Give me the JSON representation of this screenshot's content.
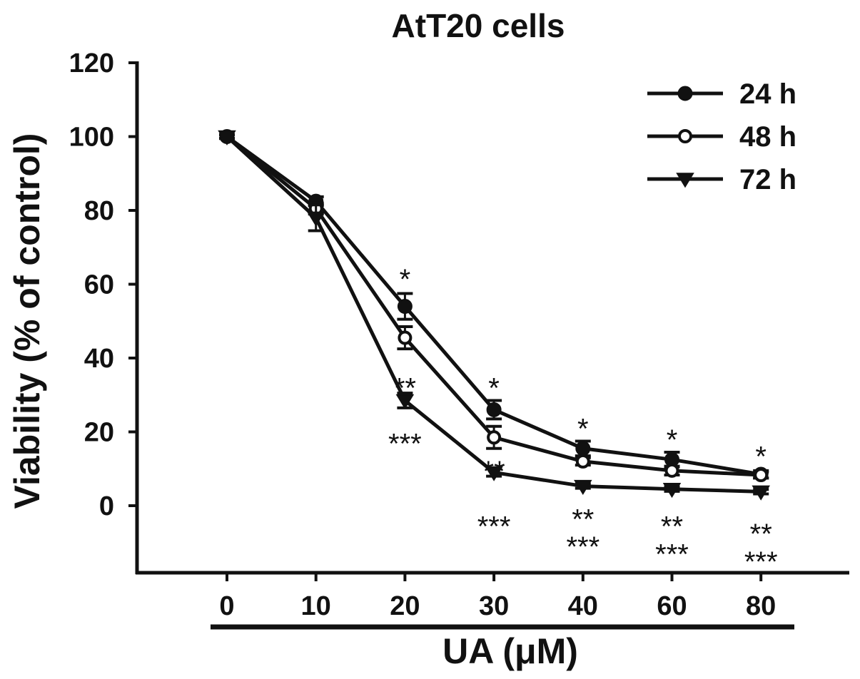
{
  "chart_data": {
    "type": "line",
    "title": "AtT20 cells",
    "xlabel": "UA (μM)",
    "ylabel": "Viability (% of control)",
    "categories": [
      "0",
      "10",
      "20",
      "30",
      "40",
      "60",
      "80"
    ],
    "ylim": [
      -18,
      120
    ],
    "yticks": [
      0,
      20,
      40,
      60,
      80,
      100,
      120
    ],
    "grid": false,
    "legend_position": "top-right",
    "series": [
      {
        "name": "24 h",
        "marker": "filled-circle",
        "color": "#111111",
        "values": [
          100,
          82.5,
          54,
          26,
          15.5,
          12.5,
          8.5
        ],
        "errors": [
          0.5,
          1.2,
          3.5,
          2.5,
          2.0,
          2.0,
          1.0
        ]
      },
      {
        "name": "48 h",
        "marker": "open-circle",
        "color": "#111111",
        "values": [
          100,
          80.5,
          45.5,
          18.5,
          12,
          9.5,
          8.3
        ],
        "errors": [
          0.5,
          1.5,
          3.0,
          3.0,
          1.0,
          1.2,
          0.8
        ]
      },
      {
        "name": "72 h",
        "marker": "filled-triangle-down",
        "color": "#111111",
        "values": [
          100,
          78,
          28.5,
          9,
          5.3,
          4.5,
          3.8
        ],
        "errors": [
          0.5,
          3.5,
          2.0,
          1.0,
          0.6,
          0.6,
          0.6
        ]
      }
    ],
    "annotations": [
      {
        "category": "20",
        "text": "*",
        "y": 63
      },
      {
        "category": "20",
        "text": "**",
        "y": 33.5
      },
      {
        "category": "20",
        "text": "***",
        "y": 18.5
      },
      {
        "category": "30",
        "text": "*",
        "y": 33.5
      },
      {
        "category": "30",
        "text": "**",
        "y": 11
      },
      {
        "category": "30",
        "text": "***",
        "y": -4
      },
      {
        "category": "40",
        "text": "*",
        "y": 22.5
      },
      {
        "category": "40",
        "text": "**",
        "y": -2
      },
      {
        "category": "40",
        "text": "***",
        "y": -9.5
      },
      {
        "category": "60",
        "text": "*",
        "y": 19.5
      },
      {
        "category": "60",
        "text": "**",
        "y": -4
      },
      {
        "category": "60",
        "text": "***",
        "y": -11.5
      },
      {
        "category": "80",
        "text": "*",
        "y": 15
      },
      {
        "category": "80",
        "text": "**",
        "y": -6
      },
      {
        "category": "80",
        "text": "***",
        "y": -13.5
      }
    ]
  }
}
